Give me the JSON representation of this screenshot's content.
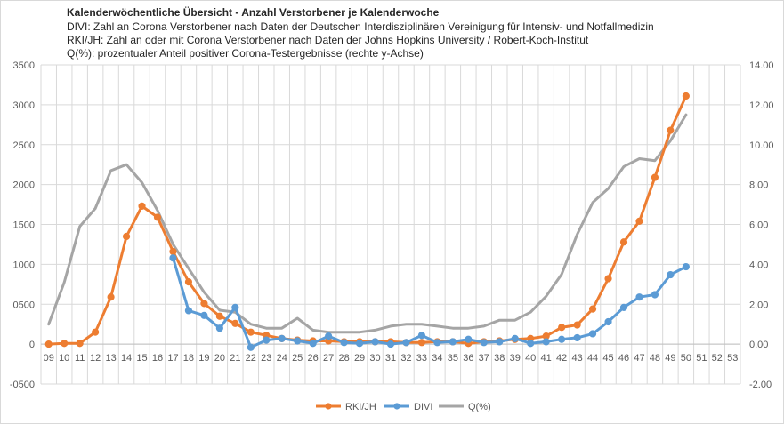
{
  "chart_data": {
    "type": "line",
    "title": "Kalenderwöchentliche Übersicht - Anzahl Verstorbener je Kalenderwoche",
    "subtitle_lines": [
      "DIVI: Zahl an Corona Verstorbener nach Daten der Deutschen Interdisziplinären Vereinigung für Intensiv- und Notfallmedizin",
      "RKI/JH: Zahl an oder mit Corona  Verstorbener nach Daten der Johns Hopkins University / Robert-Koch-Institut",
      "Q(%): prozentualer Anteil positiver Corona-Testergebnisse (rechte y-Achse)"
    ],
    "categories": [
      "09",
      "10",
      "11",
      "12",
      "13",
      "14",
      "15",
      "16",
      "17",
      "18",
      "19",
      "20",
      "21",
      "22",
      "23",
      "24",
      "25",
      "26",
      "27",
      "28",
      "29",
      "30",
      "31",
      "32",
      "33",
      "34",
      "35",
      "36",
      "37",
      "38",
      "39",
      "40",
      "41",
      "42",
      "43",
      "44",
      "45",
      "46",
      "47",
      "48",
      "49",
      "50",
      "51",
      "52",
      "53"
    ],
    "y_left": {
      "min": -500,
      "max": 3500,
      "step": 500,
      "tick_labels": [
        "-0500",
        "0",
        "0500",
        "1000",
        "1500",
        "2000",
        "2500",
        "3000",
        "3500"
      ]
    },
    "y_right": {
      "min": -2,
      "max": 14,
      "step": 2,
      "tick_labels": [
        "-2.00",
        "0.00",
        "2.00",
        "4.00",
        "6.00",
        "8.00",
        "10.00",
        "12.00",
        "14.00"
      ]
    },
    "grid": true,
    "legend_position": "bottom",
    "series": [
      {
        "name": "RKI/JH",
        "axis": "left",
        "color": "#ed7d31",
        "markers": true,
        "values": [
          0,
          10,
          10,
          150,
          590,
          1350,
          1730,
          1590,
          1160,
          780,
          510,
          350,
          260,
          150,
          110,
          70,
          50,
          40,
          40,
          30,
          30,
          30,
          30,
          20,
          20,
          30,
          30,
          10,
          30,
          40,
          60,
          70,
          100,
          210,
          240,
          440,
          820,
          1280,
          1540,
          2090,
          2680,
          3110,
          null,
          null,
          null
        ]
      },
      {
        "name": "DIVI",
        "axis": "left",
        "color": "#5b9bd5",
        "markers": true,
        "values": [
          null,
          null,
          null,
          null,
          null,
          null,
          null,
          null,
          1080,
          420,
          360,
          200,
          460,
          -40,
          50,
          70,
          40,
          10,
          100,
          20,
          10,
          30,
          0,
          20,
          110,
          20,
          30,
          60,
          20,
          30,
          70,
          10,
          30,
          60,
          80,
          130,
          280,
          460,
          590,
          620,
          870,
          970,
          null,
          null,
          null
        ]
      },
      {
        "name": "Q(%)",
        "axis": "right",
        "color": "#a5a5a5",
        "markers": false,
        "values": [
          1.0,
          3.1,
          5.9,
          6.8,
          8.7,
          9.0,
          8.1,
          6.7,
          5.0,
          3.8,
          2.6,
          1.7,
          1.6,
          1.0,
          0.8,
          0.8,
          1.3,
          0.7,
          0.6,
          0.6,
          0.6,
          0.7,
          0.9,
          1.0,
          1.0,
          0.9,
          0.8,
          0.8,
          0.9,
          1.2,
          1.2,
          1.6,
          2.4,
          3.5,
          5.5,
          7.1,
          7.8,
          8.9,
          9.3,
          9.2,
          10.2,
          11.5,
          null,
          null,
          null
        ]
      }
    ]
  }
}
